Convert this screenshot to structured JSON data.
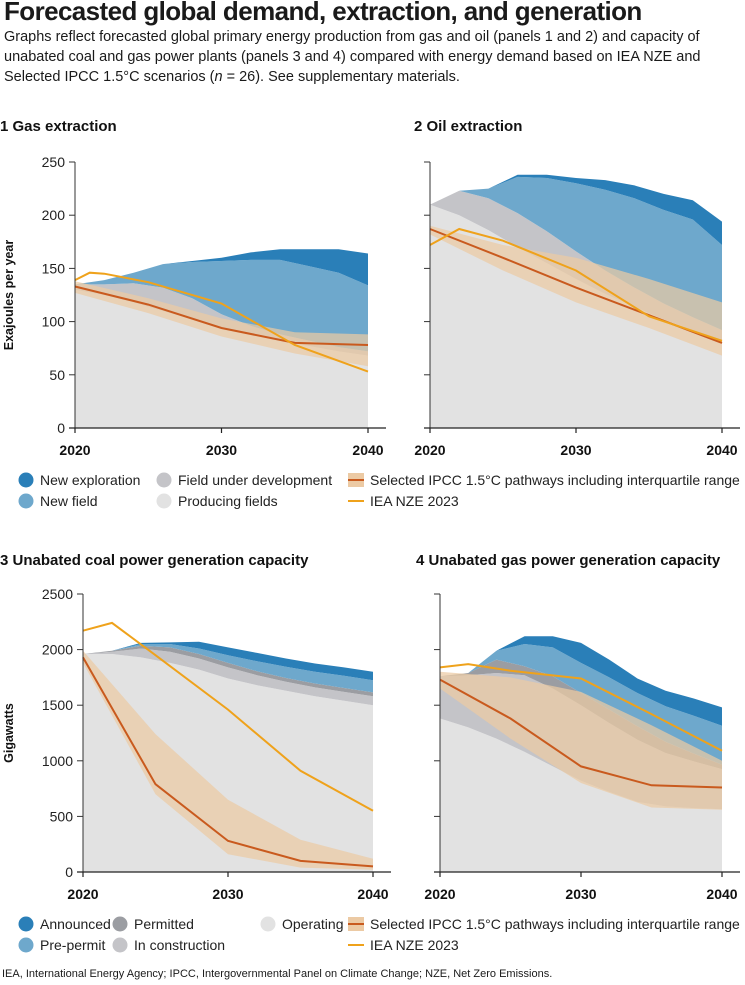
{
  "title": "Forecasted global demand, extraction, and generation",
  "subtitle_parts": {
    "a": "Graphs reflect forecasted global primary energy production from gas and oil (panels 1 and 2) and capacity of unabated coal and gas power plants (panels 3 and 4) compared with energy demand based on IEA NZE and Selected IPCC 1.5°C scenarios (",
    "n": "n",
    "b": " = 26). See supplementary materials."
  },
  "footnote": "IEA, International Energy Agency; IPCC, Intergovernmental Panel on Climate Change; NZE, Net Zero Emissions.",
  "colors": {
    "new_exploration": "#2a7fb8",
    "new_field": "#6ea8cc",
    "field_under_development": "#c4c4c8",
    "producing": "#e2e2e2",
    "ipcc_band": "#eccaa4",
    "ipcc_line": "#c95a1e",
    "iea_line": "#efa21b",
    "announced": "#2a7fb8",
    "pre_permit": "#6ea8cc",
    "permitted": "#9b9da2",
    "in_construction": "#c4c4c8",
    "operating": "#e2e2e2"
  },
  "legends": {
    "top": [
      {
        "label": "New exploration",
        "kind": "dot",
        "color_key": "new_exploration"
      },
      {
        "label": "New field",
        "kind": "dot",
        "color_key": "new_field"
      },
      {
        "label": "Field under development",
        "kind": "dot",
        "color_key": "field_under_development"
      },
      {
        "label": "Producing fields",
        "kind": "dot",
        "color_key": "producing"
      },
      {
        "label": "Selected IPCC 1.5°C pathways including interquartile range",
        "kind": "band"
      },
      {
        "label": "IEA NZE 2023",
        "kind": "line"
      }
    ],
    "bottom": [
      {
        "label": "Announced",
        "kind": "dot",
        "color_key": "announced"
      },
      {
        "label": "Pre-permit",
        "kind": "dot",
        "color_key": "pre_permit"
      },
      {
        "label": "Permitted",
        "kind": "dot",
        "color_key": "permitted"
      },
      {
        "label": "In construction",
        "kind": "dot",
        "color_key": "in_construction"
      },
      {
        "label": "Operating",
        "kind": "dot",
        "color_key": "operating"
      },
      {
        "label": "Selected IPCC 1.5°C pathways including interquartile range",
        "kind": "band"
      },
      {
        "label": "IEA NZE 2023",
        "kind": "line"
      }
    ]
  },
  "chart_data": [
    {
      "id": "p1",
      "number": "1",
      "title": "Gas extraction",
      "type": "area",
      "ylabel": "Exajoules per year",
      "ylim": [
        0,
        250
      ],
      "yticks": [
        0,
        50,
        100,
        150,
        200,
        250
      ],
      "xlim": [
        2020,
        2040
      ],
      "xticks": [
        2020,
        2030,
        2040
      ],
      "stack_x": [
        2020,
        2022,
        2024,
        2026,
        2028,
        2030,
        2032,
        2034,
        2036,
        2038,
        2040
      ],
      "stack": [
        {
          "name": "Producing fields",
          "color_key": "producing",
          "values": [
            130,
            125,
            118,
            110,
            102,
            95,
            88,
            82,
            77,
            72,
            68
          ]
        },
        {
          "name": "Field under development",
          "color_key": "field_under_development",
          "values": [
            5,
            10,
            18,
            22,
            20,
            12,
            8,
            6,
            5,
            4,
            4
          ]
        },
        {
          "name": "New field",
          "color_key": "new_field",
          "values": [
            0,
            4,
            10,
            22,
            34,
            50,
            62,
            70,
            70,
            70,
            62
          ]
        },
        {
          "name": "New exploration",
          "color_key": "new_exploration",
          "values": [
            0,
            0,
            0,
            0,
            1,
            3,
            7,
            10,
            16,
            22,
            30
          ]
        }
      ],
      "ipcc": {
        "x": [
          2020,
          2025,
          2030,
          2035,
          2040
        ],
        "median": [
          133,
          116,
          94,
          80,
          78
        ],
        "low": [
          127,
          108,
          86,
          70,
          58
        ],
        "high": [
          138,
          122,
          103,
          90,
          88
        ]
      },
      "iea": {
        "x": [
          2020,
          2021,
          2022,
          2025,
          2030,
          2035,
          2040
        ],
        "values": [
          139,
          146,
          145,
          137,
          117,
          78,
          53
        ]
      }
    },
    {
      "id": "p2",
      "number": "2",
      "title": "Oil extraction",
      "type": "area",
      "ylabel": "",
      "ylim": [
        0,
        250
      ],
      "yticks": [
        0,
        50,
        100,
        150,
        200,
        250
      ],
      "xlim": [
        2020,
        2040
      ],
      "xticks": [
        2020,
        2030,
        2040
      ],
      "stack_x": [
        2020,
        2022,
        2024,
        2026,
        2028,
        2030,
        2032,
        2034,
        2036,
        2038,
        2040
      ],
      "stack": [
        {
          "name": "Producing fields",
          "color_key": "producing",
          "values": [
            210,
            200,
            186,
            170,
            155,
            140,
            126,
            114,
            102,
            92,
            82
          ]
        },
        {
          "name": "Field under development",
          "color_key": "field_under_development",
          "values": [
            0,
            23,
            30,
            32,
            30,
            26,
            22,
            18,
            15,
            12,
            10
          ]
        },
        {
          "name": "New field",
          "color_key": "new_field",
          "values": [
            0,
            0,
            9,
            34,
            50,
            64,
            76,
            84,
            88,
            92,
            80
          ]
        },
        {
          "name": "New exploration",
          "color_key": "new_exploration",
          "values": [
            0,
            0,
            0,
            2,
            3,
            5,
            9,
            12,
            15,
            18,
            22
          ]
        }
      ],
      "ipcc": {
        "x": [
          2020,
          2025,
          2030,
          2035,
          2040
        ],
        "median": [
          187,
          160,
          132,
          106,
          80
        ],
        "low": [
          182,
          148,
          118,
          94,
          68
        ],
        "high": [
          190,
          172,
          160,
          140,
          118
        ]
      },
      "iea": {
        "x": [
          2020,
          2022,
          2025,
          2030,
          2035,
          2040
        ],
        "values": [
          172,
          187,
          176,
          148,
          105,
          82
        ]
      }
    },
    {
      "id": "p3",
      "number": "3",
      "title": "Unabated coal power generation capacity",
      "type": "area",
      "ylabel": "Gigawatts",
      "ylim": [
        0,
        2500
      ],
      "yticks": [
        0,
        500,
        1000,
        1500,
        2000,
        2500
      ],
      "xlim": [
        2020,
        2040
      ],
      "xticks": [
        2020,
        2030,
        2040
      ],
      "stack_x": [
        2020,
        2022,
        2024,
        2026,
        2028,
        2030,
        2032,
        2034,
        2036,
        2038,
        2040
      ],
      "stack": [
        {
          "name": "Operating",
          "color_key": "operating",
          "values": [
            1960,
            1960,
            1930,
            1880,
            1820,
            1740,
            1680,
            1630,
            1580,
            1540,
            1500
          ]
        },
        {
          "name": "In construction",
          "color_key": "in_construction",
          "values": [
            0,
            20,
            80,
            100,
            100,
            100,
            90,
            80,
            80,
            80,
            80
          ]
        },
        {
          "name": "Permitted",
          "color_key": "permitted",
          "values": [
            0,
            10,
            25,
            40,
            40,
            40,
            35,
            35,
            35,
            35,
            35
          ]
        },
        {
          "name": "Pre-permit",
          "color_key": "pre_permit",
          "values": [
            0,
            0,
            15,
            30,
            50,
            70,
            90,
            100,
            105,
            110,
            110
          ]
        },
        {
          "name": "Announced",
          "color_key": "announced",
          "values": [
            0,
            0,
            10,
            15,
            60,
            70,
            75,
            75,
            75,
            75,
            75
          ]
        }
      ],
      "ipcc": {
        "x": [
          2020,
          2025,
          2030,
          2035,
          2040
        ],
        "median": [
          1930,
          790,
          280,
          100,
          50
        ],
        "low": [
          1880,
          700,
          160,
          40,
          20
        ],
        "high": [
          1990,
          1240,
          650,
          290,
          120
        ]
      },
      "iea": {
        "x": [
          2020,
          2022,
          2025,
          2030,
          2035,
          2040
        ],
        "values": [
          2170,
          2240,
          1950,
          1460,
          910,
          550
        ]
      }
    },
    {
      "id": "p4",
      "number": "4",
      "title": "Unabated gas power generation capacity",
      "type": "area",
      "ylabel": "",
      "ylim": [
        0,
        2500
      ],
      "yticks": [
        0,
        500,
        1000,
        1500,
        2000,
        2500
      ],
      "xlim": [
        2020,
        2040
      ],
      "xticks": [
        2020,
        2030,
        2040
      ],
      "stack_x": [
        2020,
        2022,
        2024,
        2026,
        2028,
        2030,
        2032,
        2034,
        2036,
        2038,
        2040
      ],
      "stack": [
        {
          "name": "Operating",
          "color_key": "operating",
          "values": [
            1380,
            1300,
            1200,
            1080,
            950,
            820,
            720,
            630,
            590,
            575,
            565
          ]
        },
        {
          "name": "In construction",
          "color_key": "in_construction",
          "values": [
            380,
            470,
            590,
            690,
            700,
            680,
            620,
            560,
            480,
            420,
            360
          ]
        },
        {
          "name": "Permitted",
          "color_key": "permitted",
          "values": [
            0,
            20,
            120,
            80,
            110,
            110,
            120,
            120,
            100,
            70,
            40
          ]
        },
        {
          "name": "Pre-permit",
          "color_key": "pre_permit",
          "values": [
            0,
            0,
            80,
            200,
            260,
            270,
            290,
            300,
            320,
            340,
            350
          ]
        },
        {
          "name": "Announced",
          "color_key": "announced",
          "values": [
            0,
            0,
            0,
            70,
            100,
            180,
            160,
            130,
            140,
            155,
            165
          ]
        }
      ],
      "ipcc": {
        "x": [
          2020,
          2025,
          2030,
          2035,
          2040
        ],
        "median": [
          1730,
          1380,
          950,
          780,
          760
        ],
        "low": [
          1650,
          1200,
          800,
          580,
          560
        ],
        "high": [
          1800,
          1750,
          1620,
          1320,
          1000
        ]
      },
      "iea": {
        "x": [
          2020,
          2022,
          2025,
          2030,
          2035,
          2040
        ],
        "values": [
          1840,
          1870,
          1810,
          1740,
          1420,
          1090
        ]
      }
    }
  ]
}
